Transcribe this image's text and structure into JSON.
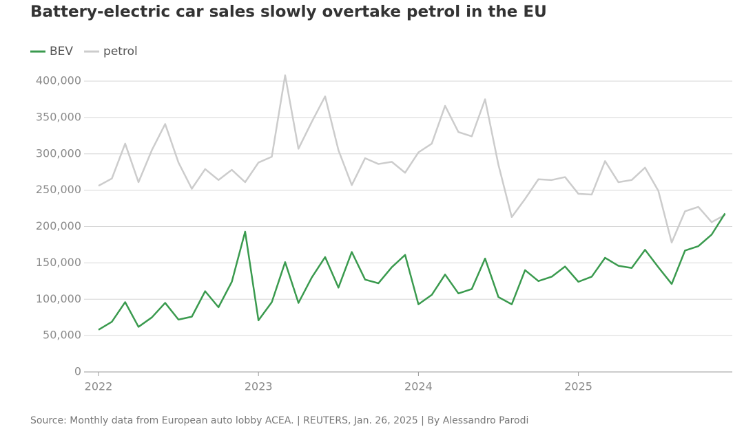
{
  "chart_data": {
    "type": "line",
    "title": "Battery-electric car sales slowly overtake petrol in the EU",
    "source": "Source: Monthly data from European auto lobby ACEA. | REUTERS, Jan. 26, 2025 | By Alessandro Parodi",
    "categories": [
      "2022",
      null,
      null,
      null,
      null,
      null,
      null,
      null,
      null,
      null,
      null,
      null,
      "2023",
      null,
      null,
      null,
      null,
      null,
      null,
      null,
      null,
      null,
      null,
      null,
      "2024",
      null,
      null,
      null,
      null,
      null,
      null,
      null,
      null,
      null,
      null,
      null,
      "2025",
      null,
      null,
      null,
      null,
      null,
      null,
      null,
      null,
      null,
      null,
      null
    ],
    "series": [
      {
        "name": "BEV",
        "color": "#3a9a4e",
        "values": [
          58000,
          69000,
          96000,
          62000,
          75000,
          95000,
          72000,
          76000,
          111000,
          89000,
          124000,
          193000,
          71000,
          96000,
          151000,
          95000,
          130000,
          158000,
          116000,
          165000,
          127000,
          122000,
          144000,
          161000,
          93000,
          106000,
          134000,
          108000,
          114000,
          156000,
          103000,
          93000,
          140000,
          125000,
          131000,
          145000,
          124000,
          131000,
          157000,
          146000,
          143000,
          168000,
          144000,
          121000,
          167000,
          173000,
          189000,
          218000
        ]
      },
      {
        "name": "petrol",
        "color": "#cccccc",
        "values": [
          256000,
          266000,
          314000,
          261000,
          305000,
          341000,
          288000,
          252000,
          279000,
          264000,
          278000,
          261000,
          288000,
          296000,
          408000,
          307000,
          344000,
          379000,
          305000,
          257000,
          294000,
          286000,
          289000,
          274000,
          302000,
          314000,
          366000,
          330000,
          324000,
          375000,
          285000,
          213000,
          238000,
          265000,
          264000,
          268000,
          245000,
          244000,
          290000,
          261000,
          264000,
          281000,
          249000,
          178000,
          221000,
          227000,
          206000,
          216000
        ]
      }
    ],
    "ylim": [
      0,
      400000
    ],
    "yticks": [
      0,
      {
        "value": 50000,
        "label": "50,000"
      },
      {
        "value": 100000,
        "label": "100,000"
      },
      {
        "value": 150000,
        "label": "150,000"
      },
      {
        "value": 200000,
        "label": "200,000"
      },
      {
        "value": 250000,
        "label": "250,000"
      },
      {
        "value": 300000,
        "label": "300,000"
      },
      {
        "value": 350000,
        "label": "350,000"
      },
      {
        "value": 400000,
        "label": "400,000"
      }
    ],
    "grid": true,
    "legend": "top-left"
  }
}
